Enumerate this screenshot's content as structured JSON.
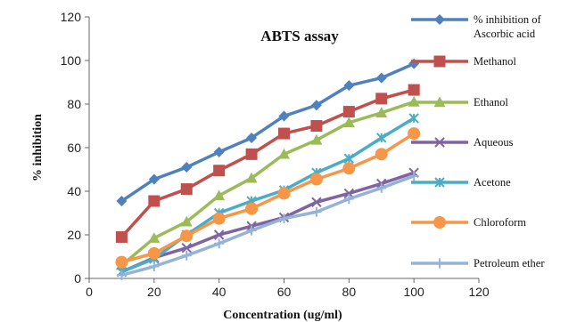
{
  "chart_data": {
    "type": "line",
    "title": "ABTS assay",
    "xlabel": "Concentration (ug/ml)",
    "ylabel": "% inhibition",
    "xlim": [
      0,
      120
    ],
    "ylim": [
      0,
      120
    ],
    "xticks": [
      0,
      20,
      40,
      60,
      80,
      100,
      120
    ],
    "yticks": [
      0,
      20,
      40,
      60,
      80,
      100,
      120
    ],
    "grid": false,
    "legend_position": "right",
    "x": [
      10,
      20,
      30,
      40,
      50,
      60,
      70,
      80,
      90,
      100
    ],
    "series": [
      {
        "name": "% inhibition of Ascorbic acid",
        "color": "#4F81BD",
        "marker": "diamond",
        "values": [
          35.5,
          45.5,
          51,
          58,
          64.5,
          74.5,
          79.5,
          88.5,
          92,
          98.5
        ]
      },
      {
        "name": "Methanol",
        "color": "#C0504D",
        "marker": "square",
        "values": [
          19,
          35.5,
          41,
          49.5,
          57,
          66.5,
          70,
          76.5,
          82.5,
          86.5
        ]
      },
      {
        "name": "Ethanol",
        "color": "#9BBB59",
        "marker": "triangle",
        "values": [
          6,
          18.5,
          26,
          38,
          46,
          57,
          63.5,
          71.5,
          76,
          81
        ]
      },
      {
        "name": "Aqueous",
        "color": "#8064A2",
        "marker": "x",
        "values": [
          3,
          9.5,
          14,
          20,
          24,
          28,
          35,
          39,
          43.5,
          48.5
        ]
      },
      {
        "name": "Acetone",
        "color": "#4BACC6",
        "marker": "star",
        "values": [
          3,
          9,
          20,
          30,
          35.5,
          40.5,
          48.5,
          55,
          64.5,
          73.5
        ]
      },
      {
        "name": "Chloroform",
        "color": "#F79646",
        "marker": "circle",
        "values": [
          7.5,
          11.5,
          19.5,
          27.5,
          32,
          39,
          45.5,
          50.5,
          57,
          66.5
        ]
      },
      {
        "name": "Petroleum ether",
        "color": "#95B3D7",
        "marker": "plus",
        "values": [
          1.5,
          5.5,
          10.5,
          16,
          22,
          27.5,
          30.5,
          36.5,
          41.5,
          47
        ]
      }
    ]
  }
}
